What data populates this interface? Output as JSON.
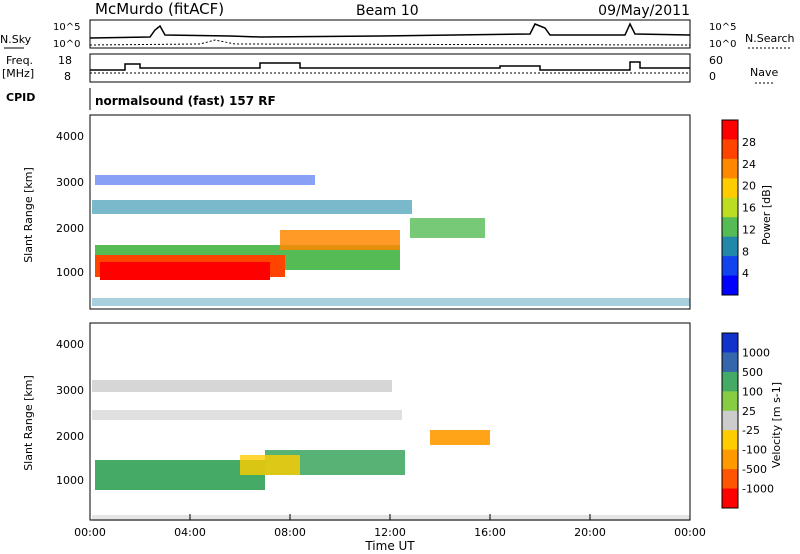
{
  "header": {
    "station": "McMurdo (fitACF)",
    "beam": "Beam 10",
    "date": "09/May/2011"
  },
  "top_panels": {
    "nsky_label": "N.Sky",
    "nsky_ticks": [
      "10^5",
      "10^0"
    ],
    "nsearch_label": "N.Search",
    "nsearch_ticks": [
      "10^5",
      "10^0"
    ],
    "freq_label_1": "Freq.",
    "freq_label_2": "[MHz]",
    "freq_ticks": [
      "18",
      "8"
    ],
    "nave_label": "Nave",
    "nave_ticks": [
      "60",
      "0"
    ],
    "cpid_label": "CPID",
    "cpid_text": "normalsound (fast) 157 RF"
  },
  "chart_data": [
    {
      "type": "heatmap",
      "name": "power",
      "ylabel": "Slant Range [km]",
      "y_ticks": [
        "4000",
        "3000",
        "2000",
        "1000"
      ],
      "ylim": [
        180,
        4560
      ],
      "colorbar_label": "Power [dB]",
      "colorbar_ticks": [
        "28",
        "24",
        "20",
        "16",
        "12",
        "8",
        "4"
      ],
      "colorbar_colors": [
        "#ff0000",
        "#ff4400",
        "#ff8800",
        "#ffcc00",
        "#bbdd22",
        "#55bb55",
        "#2288aa",
        "#1144ee",
        "#0000ff"
      ]
    },
    {
      "type": "heatmap",
      "name": "velocity",
      "ylabel": "Slant Range [km]",
      "y_ticks": [
        "4000",
        "3000",
        "2000",
        "1000"
      ],
      "ylim": [
        180,
        4560
      ],
      "colorbar_label": "Velocity [m s-1]",
      "colorbar_ticks": [
        "1000",
        "500",
        "100",
        "25",
        "-25",
        "-100",
        "-500",
        "-1000"
      ],
      "colorbar_colors": [
        "#1133cc",
        "#3366aa",
        "#44aa66",
        "#88cc44",
        "#cccccc",
        "#ffcc00",
        "#ff9900",
        "#ff5500",
        "#ff0000"
      ]
    }
  ],
  "x_axis": {
    "ticks": [
      "00:00",
      "04:00",
      "08:00",
      "12:00",
      "16:00",
      "20:00",
      "00:00"
    ],
    "label": "Time UT"
  }
}
